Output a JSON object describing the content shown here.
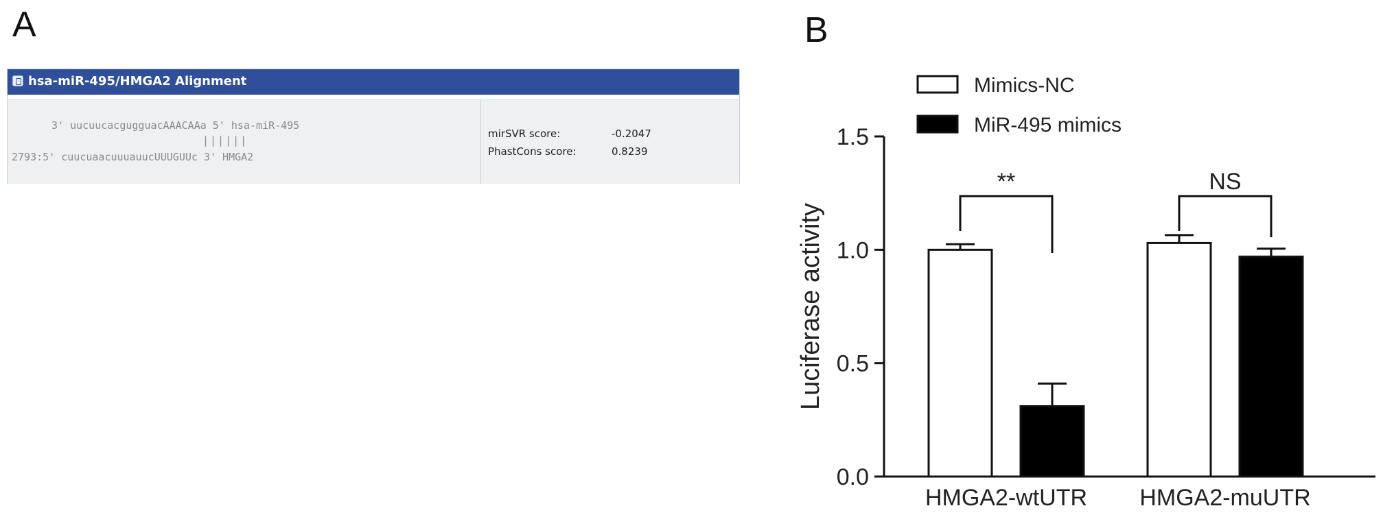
{
  "panel_a": {
    "letter": "A",
    "title": "hsa-miR-495/HMGA2 Alignment",
    "seq_line_1": "3' uucuucacgugguacAAACAAa 5' hsa-miR-495",
    "seq_line_2": "||||||",
    "seq_line_3": "2793:5' cuucuaacuuuauucUUUGUUc 3' HMGA2",
    "mirsvr_label": "mirSVR score:",
    "mirsvr_value": "-0.2047",
    "phastcons_label": "PhastCons score:",
    "phastcons_value": "0.8239"
  },
  "panel_b": {
    "letter": "B"
  },
  "chart_data": {
    "type": "bar",
    "title": "",
    "xlabel": "",
    "ylabel": "Luciferase activity",
    "categories": [
      "HMGA2-wtUTR",
      "HMGA2-muUTR"
    ],
    "series": [
      {
        "name": "Mimics-NC",
        "values": [
          1.0,
          1.03
        ],
        "errors": [
          0.025,
          0.035
        ],
        "color": "#ffffff"
      },
      {
        "name": "MiR-495 mimics",
        "values": [
          0.31,
          0.97
        ],
        "errors": [
          0.1,
          0.035
        ],
        "color": "#000000"
      }
    ],
    "ylim": [
      0.0,
      1.5
    ],
    "yticks": [
      0.0,
      0.5,
      1.0,
      1.5
    ],
    "ytick_labels": [
      "0.0",
      "0.5",
      "1.0",
      "1.5"
    ],
    "significance": [
      "**",
      "NS"
    ],
    "legend_position": "top-left",
    "grid": false
  }
}
